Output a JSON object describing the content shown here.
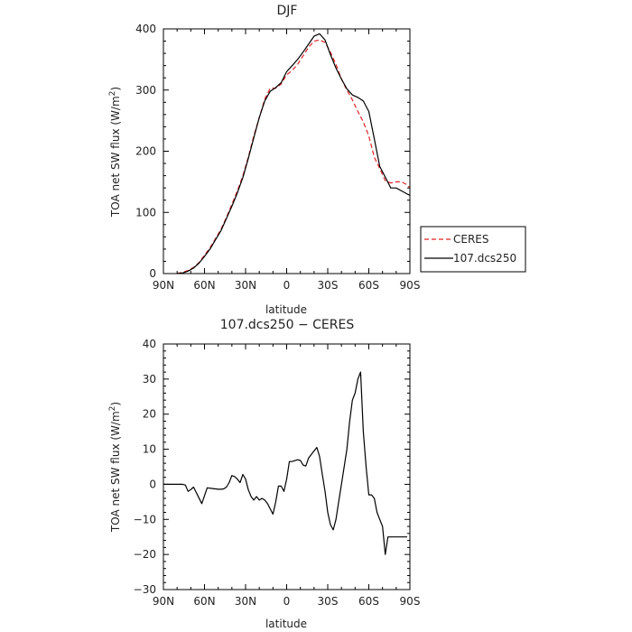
{
  "figure": {
    "top_title": "DJF",
    "bottom_title": "107.dcs250 − CERES"
  },
  "colors": {
    "ceres": "#e02020",
    "model": "#000000",
    "frame": "#000000"
  },
  "chart_data": [
    {
      "type": "line",
      "title": "DJF",
      "xlabel": "latitude",
      "ylabel": "TOA net SW flux (W/m²)",
      "ylabel_main": "TOA net SW flux (W/m",
      "ylabel_sup": "2",
      "ylabel_tail": ")",
      "xlim": [
        90,
        -90
      ],
      "ylim": [
        0,
        400
      ],
      "x_ticks": [
        90,
        60,
        30,
        0,
        -30,
        -60,
        -90
      ],
      "x_tick_labels": [
        "90N",
        "60N",
        "30N",
        "0",
        "30S",
        "60S",
        "90S"
      ],
      "y_ticks": [
        0,
        100,
        200,
        300,
        400
      ],
      "y_tick_labels": [
        "0",
        "100",
        "200",
        "300",
        "400"
      ],
      "legend_position": "right",
      "series": [
        {
          "name": "CERES",
          "style": "dashed",
          "x": [
            80,
            76,
            72,
            68,
            64,
            60,
            56,
            52,
            48,
            44,
            40,
            36,
            32,
            28,
            24,
            20,
            16,
            12,
            8,
            4,
            0,
            -4,
            -8,
            -12,
            -16,
            -20,
            -24,
            -28,
            -32,
            -36,
            -40,
            -44,
            -48,
            -52,
            -56,
            -60,
            -64,
            -68,
            -72,
            -76,
            -80,
            -84,
            -88,
            -90
          ],
          "y": [
            0,
            2,
            5,
            10,
            18,
            30,
            42,
            57,
            72,
            92,
            113,
            135,
            160,
            190,
            225,
            255,
            285,
            303,
            303,
            310,
            325,
            332,
            342,
            356,
            370,
            380,
            382,
            378,
            362,
            342,
            318,
            300,
            284,
            265,
            248,
            225,
            190,
            172,
            152,
            148,
            150,
            150,
            145,
            140
          ]
        },
        {
          "name": "107.dcs250",
          "style": "solid",
          "x": [
            80,
            76,
            72,
            68,
            64,
            60,
            56,
            52,
            48,
            44,
            40,
            36,
            32,
            28,
            24,
            20,
            16,
            12,
            8,
            4,
            0,
            -4,
            -8,
            -12,
            -16,
            -20,
            -24,
            -28,
            -32,
            -36,
            -40,
            -44,
            -48,
            -52,
            -56,
            -60,
            -64,
            -68,
            -72,
            -76,
            -80,
            -84,
            -88,
            -90
          ],
          "y": [
            0,
            1,
            4,
            9,
            17,
            28,
            40,
            55,
            70,
            90,
            110,
            132,
            157,
            188,
            222,
            255,
            282,
            298,
            304,
            312,
            330,
            340,
            350,
            362,
            375,
            388,
            392,
            382,
            358,
            336,
            318,
            302,
            292,
            288,
            282,
            265,
            220,
            175,
            158,
            140,
            140,
            135,
            130,
            128
          ]
        }
      ]
    },
    {
      "type": "line",
      "title": "107.dcs250 − CERES",
      "xlabel": "latitude",
      "ylabel": "TOA net SW flux (W/m²)",
      "ylabel_main": "TOA net SW flux (W/m",
      "ylabel_sup": "2",
      "ylabel_tail": ")",
      "xlim": [
        90,
        -90
      ],
      "ylim": [
        -30,
        40
      ],
      "x_ticks": [
        90,
        60,
        30,
        0,
        -30,
        -60,
        -90
      ],
      "x_tick_labels": [
        "90N",
        "60N",
        "30N",
        "0",
        "30S",
        "60S",
        "90S"
      ],
      "y_ticks": [
        -30,
        -20,
        -10,
        0,
        10,
        20,
        30,
        40
      ],
      "y_tick_labels": [
        "−30",
        "−20",
        "−10",
        "0",
        "10",
        "20",
        "30",
        "40"
      ],
      "series": [
        {
          "style": "solid",
          "x": [
            90,
            80,
            76,
            74,
            72,
            70,
            68,
            62,
            58,
            54,
            52,
            50,
            48,
            46,
            44,
            42,
            40,
            38,
            36,
            34,
            32,
            30,
            28,
            26,
            24,
            22,
            20,
            18,
            16,
            14,
            12,
            10,
            8,
            6,
            4,
            2,
            0,
            -2,
            -4,
            -8,
            -10,
            -12,
            -14,
            -16,
            -18,
            -20,
            -22,
            -24,
            -26,
            -28,
            -30,
            -32,
            -34,
            -36,
            -38,
            -40,
            -42,
            -44,
            -46,
            -48,
            -50,
            -52,
            -54,
            -56,
            -58,
            -60,
            -62,
            -64,
            -66,
            -68,
            -70,
            -72,
            -74,
            -76,
            -78,
            -80,
            -82,
            -84,
            -86,
            -88
          ],
          "y": [
            0,
            0,
            0,
            -0.2,
            -2,
            -1.5,
            -0.8,
            -5.5,
            -1,
            -1.2,
            -1.3,
            -1.4,
            -1.4,
            -1.3,
            -0.8,
            0.5,
            2.5,
            2.2,
            1.5,
            0.5,
            2.8,
            1.5,
            -1.5,
            -3.5,
            -4.5,
            -3.5,
            -4.5,
            -4,
            -4.5,
            -5.5,
            -7,
            -8.5,
            -5,
            -0.5,
            -0.5,
            -2,
            1.5,
            6.5,
            6.5,
            7,
            6.8,
            5.5,
            5.2,
            7.5,
            8.5,
            9.5,
            10.5,
            8,
            3,
            -2,
            -8,
            -11.5,
            -13,
            -10,
            -5,
            0,
            5,
            10,
            18,
            24,
            26,
            30,
            32,
            15,
            5,
            -3,
            -3,
            -4,
            -8,
            -10,
            -12,
            -20,
            -15,
            -15,
            -15,
            -15,
            -15,
            -15,
            -15,
            -15
          ]
        }
      ]
    }
  ]
}
